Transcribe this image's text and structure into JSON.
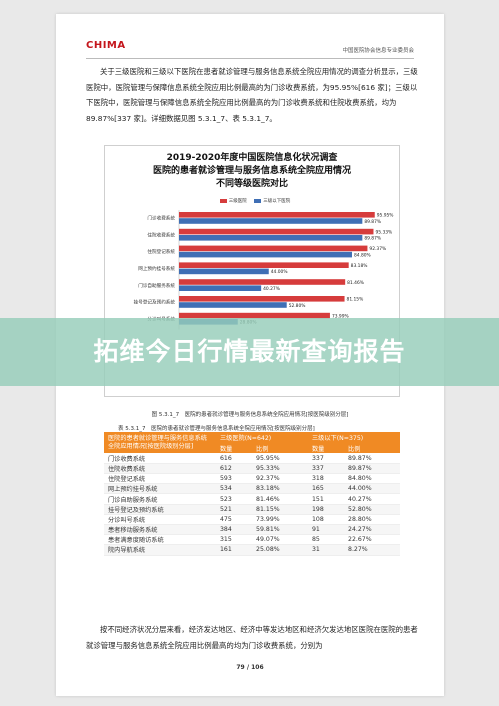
{
  "header": {
    "logo": "CHIMA",
    "right": "中国医院协会信息专业委员会"
  },
  "paragraph1": "关于三级医院和三级以下医院在患者就诊管理与服务信息系统全院应用情况的调查分析显示，三级医院中，医院管理与保障信息系统全院应用比例最高的为门诊收费系统，为95.95%[616 家]；三级以下医院中，医院管理与保障信息系统全院应用比例最高的为门诊收费系统和住院收费系统，均为 89.87%[337 家]。详细数据见图 5.3.1_7、表 5.3.1_7。",
  "figure": {
    "title_lines": [
      "2019-2020年度中国医院信息化状况调查",
      "医院的患者就诊管理与服务信息系统全院应用情况",
      "不同等级医院对比"
    ]
  },
  "chart_data": {
    "type": "bar",
    "title": "2019-2020年度中国医院信息化状况调查 医院的患者就诊管理与服务信息系统全院应用情况 不同等级医院对比",
    "categories": [
      "门诊收费系统",
      "住院收费系统",
      "住院登记系统",
      "网上预约挂号系统",
      "门诊自助服务系统",
      "挂号登记及预约系统",
      "分诊叫号系统"
    ],
    "series": [
      {
        "name": "三级医院",
        "color": "#d63c3c",
        "values": [
          95.95,
          95.33,
          92.37,
          83.18,
          81.46,
          81.15,
          73.99
        ]
      },
      {
        "name": "三级以下医院",
        "color": "#3f6fb5",
        "values": [
          89.87,
          89.87,
          84.8,
          44.0,
          40.27,
          52.8,
          28.8
        ]
      }
    ],
    "value_labels": {
      "三级医院": [
        "95.95%",
        "95.33%",
        "92.37%",
        "83.18%",
        "81.46%",
        "81.15%",
        "73.99%"
      ],
      "三级以下医院": [
        "89.87%",
        "89.87%",
        "84.80%",
        "44.00%",
        "40.27%",
        "52.80%",
        "28.80%"
      ]
    },
    "obscured_visible_labels": [
      "58.81%",
      "0.00%",
      "20.00%",
      "40.00%",
      "60.00%",
      "80.00%",
      "100.00%"
    ],
    "xlim": [
      0,
      100
    ],
    "legend_position": "top-center",
    "grid": false
  },
  "caption1": "图 5.3.1_7　医院的患者就诊管理与服务信息系统全院应用情况[按医院级别分层]",
  "caption2": "表 5.3.1_7　医院的患者就诊管理与服务信息系统全院应用情况[按医院级别分层]",
  "table": {
    "corner_label": "医院的患者就诊管理与服务信息系统全院应用情况[按医院级别分层]",
    "group1": "三级医院(N=642)",
    "group2": "三级以下(N=375)",
    "sub": [
      "数量",
      "比例",
      "数量",
      "比例"
    ],
    "rows": [
      {
        "name": "门诊收费系统",
        "c1": "616",
        "c2": "95.95%",
        "c3": "337",
        "c4": "89.87%"
      },
      {
        "name": "住院收费系统",
        "c1": "612",
        "c2": "95.33%",
        "c3": "337",
        "c4": "89.87%"
      },
      {
        "name": "住院登记系统",
        "c1": "593",
        "c2": "92.37%",
        "c3": "318",
        "c4": "84.80%"
      },
      {
        "name": "网上预约挂号系统",
        "c1": "534",
        "c2": "83.18%",
        "c3": "165",
        "c4": "44.00%"
      },
      {
        "name": "门诊自助服务系统",
        "c1": "523",
        "c2": "81.46%",
        "c3": "151",
        "c4": "40.27%"
      },
      {
        "name": "挂号登记及预约系统",
        "c1": "521",
        "c2": "81.15%",
        "c3": "198",
        "c4": "52.80%"
      },
      {
        "name": "分诊叫号系统",
        "c1": "475",
        "c2": "73.99%",
        "c3": "108",
        "c4": "28.80%"
      },
      {
        "name": "患者移动服务系统",
        "c1": "384",
        "c2": "59.81%",
        "c3": "91",
        "c4": "24.27%"
      },
      {
        "name": "患者满意度随访系统",
        "c1": "315",
        "c2": "49.07%",
        "c3": "85",
        "c4": "22.67%"
      },
      {
        "name": "院内导航系统",
        "c1": "161",
        "c2": "25.08%",
        "c3": "31",
        "c4": "8.27%"
      }
    ]
  },
  "paragraph2": "按不同经济状况分层来看，经济发达地区、经济中等发达地区和经济欠发达地区医院在医院的患者就诊管理与服务信息系统全院应用比例最高的均为门诊收费系统，分别为",
  "page_number": "79 / 106",
  "banner": "拓维今日行情最新查询报告"
}
